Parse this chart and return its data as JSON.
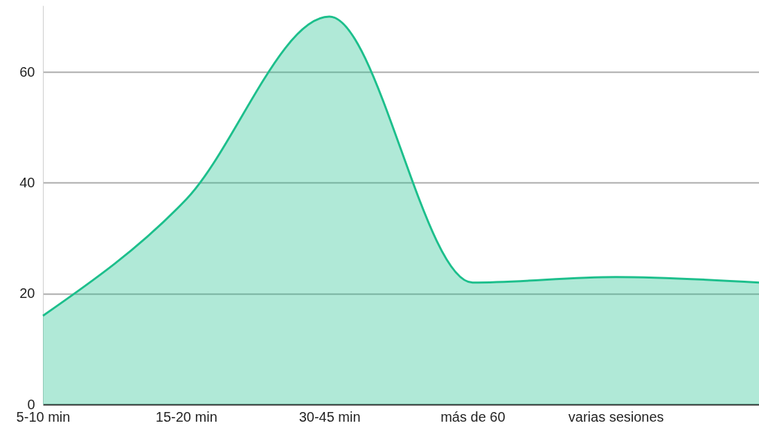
{
  "chart_data": {
    "type": "area",
    "categories": [
      "5-10 min",
      "15-20 min",
      "30-45 min",
      "más de 60",
      "varias sesiones",
      null
    ],
    "series": [
      {
        "color": "#1dbf8c",
        "values": [
          16,
          37,
          70,
          22,
          23,
          22
        ]
      }
    ],
    "ylim": [
      0,
      72
    ],
    "yticks": [
      0,
      20,
      40,
      60
    ],
    "grid": "y"
  }
}
